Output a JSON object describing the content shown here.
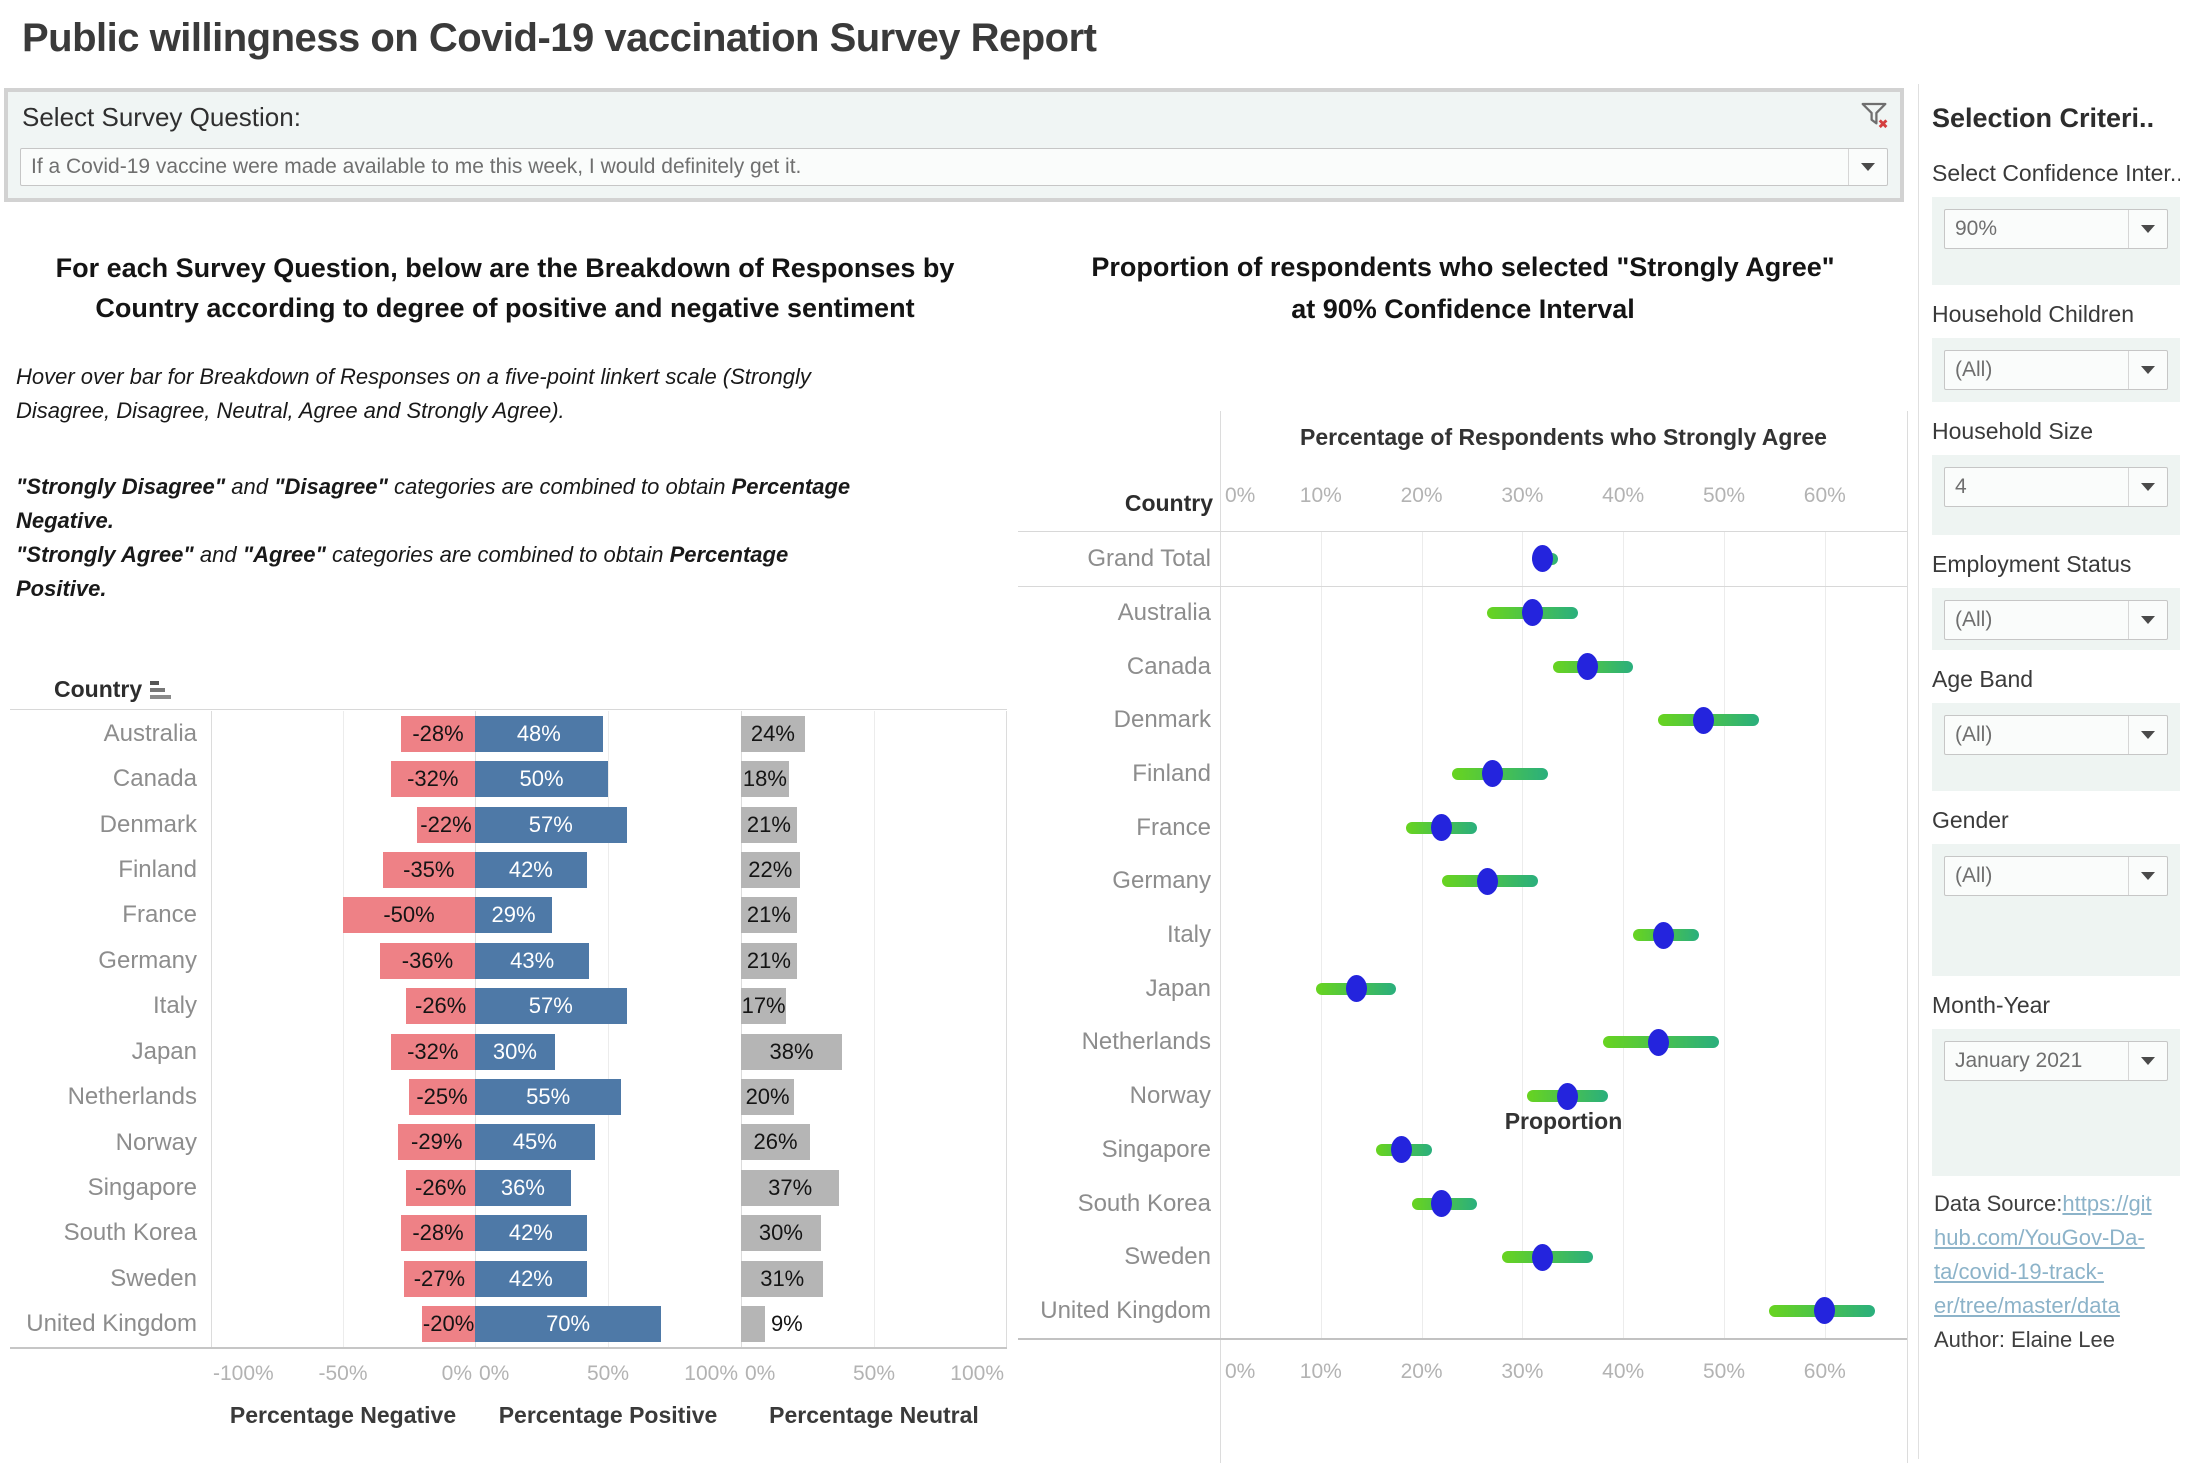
{
  "page": {
    "title": "Public willingness on Covid-19 vaccination Survey Report"
  },
  "survey_filter": {
    "label": "Select Survey Question:",
    "value": "If a Covid-19 vaccine were made available to me this week, I would definitely get it.",
    "clear_filter_icon": "funnel-with-red-x",
    "dropdown_icon": "chevron-down"
  },
  "left_chart": {
    "heading_line1": "For each Survey Question, below are the Breakdown of Responses by",
    "heading_line2": "Country according to degree of positive and negative sentiment",
    "description": [
      {
        "cls": "para1",
        "lines": [
          [
            {
              "t": "Hover over bar for Breakdown of Responses on a five-point linkert scale (Strongly",
              "b": false
            }
          ],
          [
            {
              "t": "Disagree, Disagree, Neutral, Agree and Strongly Agree).",
              "b": false
            }
          ]
        ]
      },
      {
        "cls": "para",
        "lines": [
          [
            {
              "t": "\"Strongly Disagree\"",
              "b": true
            },
            {
              "t": " and ",
              "b": false
            },
            {
              "t": "\"Disagree\"",
              "b": true
            },
            {
              "t": " categories are combined to obtain ",
              "b": false
            },
            {
              "t": "Percentage",
              "b": true
            }
          ],
          [
            {
              "t": "Negative.",
              "b": true
            }
          ]
        ]
      },
      {
        "cls": "para",
        "lines": [
          [
            {
              "t": "\"Strongly Agree\"",
              "b": true
            },
            {
              "t": " and ",
              "b": false
            },
            {
              "t": "\"Agree\"",
              "b": true
            },
            {
              "t": " categories are combined to obtain ",
              "b": false
            },
            {
              "t": "Percentage",
              "b": true
            }
          ],
          [
            {
              "t": "Positive.",
              "b": true
            }
          ]
        ]
      }
    ],
    "country_header": "Country",
    "sort_icon": "sort-descending-bars",
    "axis": {
      "negative": {
        "ticks": [
          "-100%",
          "-50%",
          "0%"
        ]
      },
      "positive": {
        "ticks": [
          "0%",
          "50%",
          "100%"
        ]
      },
      "neutral": {
        "ticks": [
          "0%",
          "50%",
          "100%"
        ]
      }
    },
    "axis_titles": [
      "Percentage Negative",
      "Percentage Positive",
      "Percentage Neutral"
    ]
  },
  "right_chart": {
    "title_line1": "Proportion of respondents who selected \"Strongly Agree\"",
    "title_line2": "at 90% Confidence Interval",
    "axis_header": "Percentage of Respondents who Strongly Agree",
    "country_header": "Country",
    "xlabel": "Proportion",
    "ticks": [
      "0%",
      "10%",
      "20%",
      "30%",
      "40%",
      "50%",
      "60%"
    ]
  },
  "sidebar": {
    "title": "Selection Criteri..",
    "filters": [
      {
        "label": "Select Confidence Inter..",
        "value": "90%"
      },
      {
        "label": "Household Children",
        "value": "(All)"
      },
      {
        "label": "Household Size",
        "value": "4"
      },
      {
        "label": "Employment Status",
        "value": "(All)"
      },
      {
        "label": "Age Band",
        "value": "(All)"
      },
      {
        "label": "Gender",
        "value": "(All)"
      },
      {
        "label": "Month-Year",
        "value": "January 2021"
      }
    ],
    "source": {
      "prefix": "Data Source:",
      "link_lines": [
        "https://git",
        "hub.com/YouGov-Da-",
        "ta/covid-19-track-",
        "er/tree/master/data"
      ],
      "author": "Author: Elaine Lee"
    }
  },
  "colors": {
    "negative_bar": "#ee8186",
    "positive_bar": "#4e79a7",
    "neutral_bar": "#b5b5b5",
    "ci_gradient_start": "#68d41f",
    "ci_gradient_end": "#2aaf7d",
    "dot_blue": "#2424dd",
    "panel_bg": "#eef4f2",
    "link_blue": "#8cb3c9"
  },
  "chart_data": [
    {
      "type": "bar",
      "subtype": "diverging-stacked-panels",
      "title": "For each Survey Question, below are the Breakdown of Responses by Country according to degree of positive and negative sentiment",
      "unit": "%",
      "categories": [
        "Australia",
        "Canada",
        "Denmark",
        "Finland",
        "France",
        "Germany",
        "Italy",
        "Japan",
        "Netherlands",
        "Norway",
        "Singapore",
        "South Korea",
        "Sweden",
        "United Kingdom"
      ],
      "series": [
        {
          "name": "Percentage Negative",
          "axis_range": [
            -100,
            0
          ],
          "values": [
            -28,
            -32,
            -22,
            -35,
            -50,
            -36,
            -26,
            -32,
            -25,
            -29,
            -26,
            -28,
            -27,
            -20
          ]
        },
        {
          "name": "Percentage Positive",
          "axis_range": [
            0,
            100
          ],
          "values": [
            48,
            50,
            57,
            42,
            29,
            43,
            57,
            30,
            55,
            45,
            36,
            42,
            42,
            70
          ]
        },
        {
          "name": "Percentage Neutral",
          "axis_range": [
            0,
            100
          ],
          "values": [
            24,
            18,
            21,
            22,
            21,
            21,
            17,
            38,
            20,
            26,
            37,
            30,
            31,
            9
          ]
        }
      ]
    },
    {
      "type": "scatter",
      "subtype": "dot-with-confidence-interval",
      "title": "Proportion of respondents who selected \"Strongly Agree\" at 90% Confidence Interval",
      "x_axis_header": "Percentage of Respondents who Strongly Agree",
      "xlabel": "Proportion",
      "xlim": [
        0,
        68
      ],
      "tick_step": 10,
      "unit": "%",
      "rows": [
        {
          "label": "Grand Total",
          "value": 32,
          "lo": 31,
          "hi": 33.5,
          "grand_total": true
        },
        {
          "label": "Australia",
          "value": 31,
          "lo": 26.5,
          "hi": 35.5
        },
        {
          "label": "Canada",
          "value": 36.5,
          "lo": 33,
          "hi": 41
        },
        {
          "label": "Denmark",
          "value": 48,
          "lo": 43.5,
          "hi": 53.5
        },
        {
          "label": "Finland",
          "value": 27,
          "lo": 23,
          "hi": 32.5
        },
        {
          "label": "France",
          "value": 22,
          "lo": 18.5,
          "hi": 25.5
        },
        {
          "label": "Germany",
          "value": 26.5,
          "lo": 22,
          "hi": 31.5
        },
        {
          "label": "Italy",
          "value": 44,
          "lo": 41,
          "hi": 47.5
        },
        {
          "label": "Japan",
          "value": 13.5,
          "lo": 9.5,
          "hi": 17.5
        },
        {
          "label": "Netherlands",
          "value": 43.5,
          "lo": 38,
          "hi": 49.5
        },
        {
          "label": "Norway",
          "value": 34.5,
          "lo": 30.5,
          "hi": 38.5
        },
        {
          "label": "Singapore",
          "value": 18,
          "lo": 15.5,
          "hi": 21
        },
        {
          "label": "South Korea",
          "value": 22,
          "lo": 19,
          "hi": 25.5
        },
        {
          "label": "Sweden",
          "value": 32,
          "lo": 28,
          "hi": 37
        },
        {
          "label": "United Kingdom",
          "value": 60,
          "lo": 54.5,
          "hi": 65
        }
      ]
    }
  ]
}
